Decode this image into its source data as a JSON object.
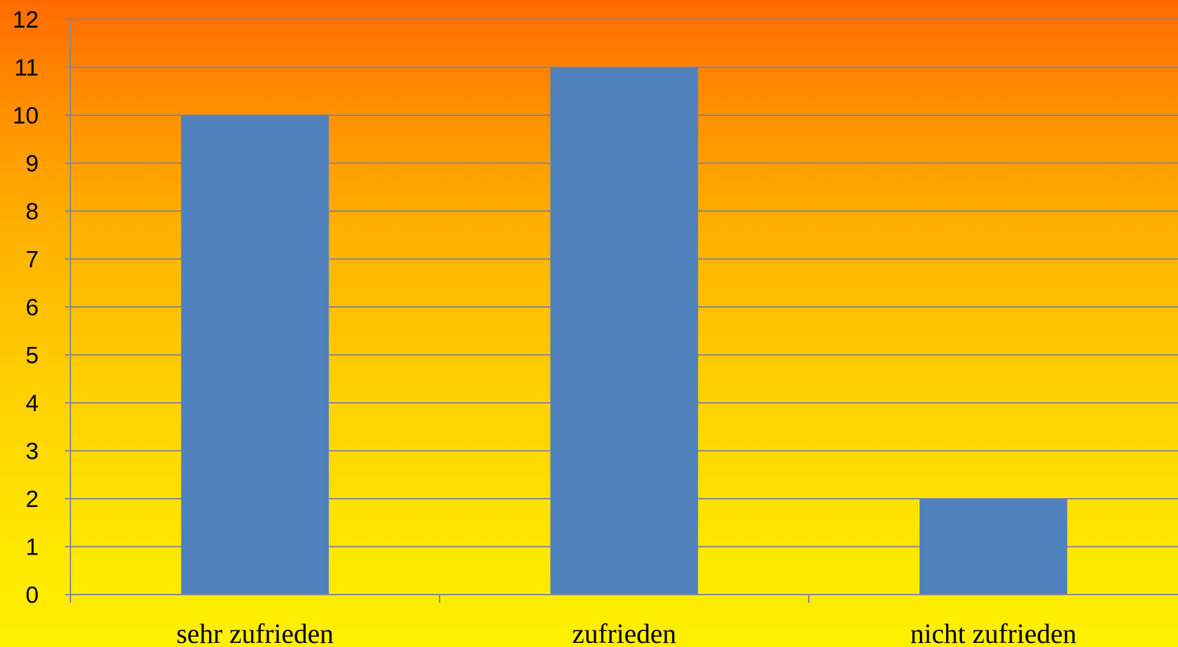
{
  "chart_data": {
    "type": "bar",
    "categories": [
      "sehr zufrieden",
      "zufrieden",
      "nicht zufrieden"
    ],
    "values": [
      10,
      11,
      2
    ],
    "ylim": [
      0,
      12
    ],
    "yticks": [
      "0",
      "1",
      "2",
      "3",
      "4",
      "5",
      "6",
      "7",
      "8",
      "9",
      "10",
      "11",
      "12"
    ],
    "grid": true,
    "bar_color": "#4f81bd",
    "gridline_color": "#888888",
    "title": "",
    "xlabel": "",
    "ylabel": ""
  }
}
